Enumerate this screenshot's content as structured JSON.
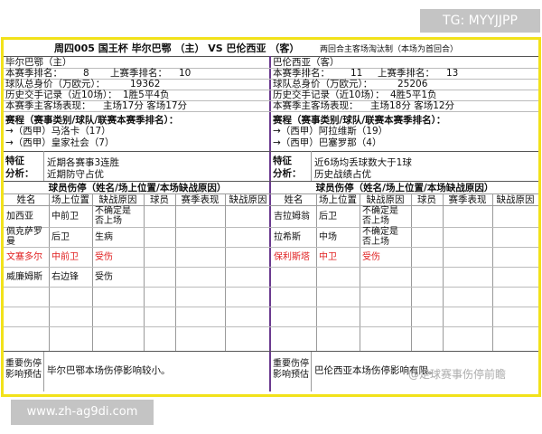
{
  "overlay": {
    "tg": "TG: MYYJJPP",
    "url": "www.zh-ag9di.com",
    "watermark": "@足球赛事伤停前瞻"
  },
  "header": {
    "title": "周四005  国王杯  毕尔巴鄂 （主） VS 巴伦西亚 （客）",
    "format": "两回合主客场淘汰制（本场为首回合）"
  },
  "teams": [
    {
      "name": "毕尔巴鄂（主）",
      "rank_label": "本赛季排名：",
      "rank": 8,
      "last_rank_label": "上赛季排名：",
      "last_rank": 10,
      "value_label": "球队总身价（万欧元）：",
      "value": 19362,
      "h2h_label": "历史交手记录（近10场）：",
      "h2h": "1胜5平4负",
      "home_away_label": "本赛季主客场表现：",
      "home_away": "主场17分  客场17分",
      "schedule_label": "赛程（赛事类别/球队/联赛本赛季排名）：",
      "schedule": [
        "→（西甲）马洛卡（17）",
        "→（西甲）皇家社会（7）"
      ],
      "features_label": [
        "特征",
        "分析："
      ],
      "features": [
        "近期各赛事3连胜",
        "近期防守占优"
      ],
      "injury_title": "球员伤停（姓名/场上位置/本场缺战原因）",
      "injury_columns": [
        "姓名",
        "场上位置",
        "缺战原因",
        "球员",
        "赛季表现",
        "缺战原因"
      ],
      "injuries": [
        {
          "name": "加西亚",
          "position": "中前卫",
          "reason": "不确定是否上场"
        },
        {
          "name": "佩克萨罗曼",
          "position": "后卫",
          "reason": "生病"
        },
        {
          "name": "文塞多尔",
          "position": "中前卫",
          "reason": "受伤",
          "color": "#e02020"
        },
        {
          "name": "威廉姆斯",
          "position": "右边锋",
          "reason": "受伤"
        }
      ],
      "impact_label": "重要伤停影响预估",
      "impact": "毕尔巴鄂本场伤停影响较小。"
    },
    {
      "name": "巴伦西亚（客）",
      "rank_label": "本赛季排名：",
      "rank": 11,
      "last_rank_label": "上赛季排名：",
      "last_rank": 13,
      "value_label": "球队总身价（万欧元）：",
      "value": 25206,
      "h2h_label": "历史交手记录（近10场）：",
      "h2h": "4胜5平1负",
      "home_away_label": "本赛季主客场表现：",
      "home_away": "主场18分  客场12分",
      "schedule_label": "赛程（赛事类别/球队/联赛本赛季排名）：",
      "schedule": [
        "→（西甲）阿拉维斯（19）",
        "→（西甲）巴塞罗那（4）"
      ],
      "features_label": [
        "特征",
        "分析："
      ],
      "features": [
        "近6场均丢球数大于1球",
        "历史战绩占优"
      ],
      "injury_title": "球员伤停（姓名/场上位置/本场缺战原因）",
      "injury_columns": [
        "姓名",
        "场上位置",
        "缺战原因",
        "球员",
        "赛季表现",
        "缺战原因"
      ],
      "injuries": [
        {
          "name": "吉拉姆翁",
          "position": "后卫",
          "reason": "不确定是否上场"
        },
        {
          "name": "拉希斯",
          "position": "中场",
          "reason": "不确定是否上场"
        },
        {
          "name": "保利斯塔",
          "position": "中卫",
          "reason": "受伤",
          "color": "#e02020"
        }
      ],
      "impact_label": "重要伤停影响预估",
      "impact": "巴伦西亚本场伤停影响有限。"
    }
  ]
}
